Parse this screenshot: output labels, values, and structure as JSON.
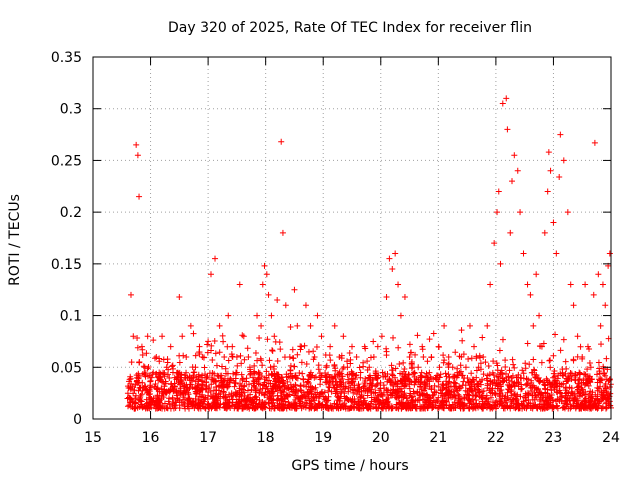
{
  "chart_data": {
    "type": "scatter",
    "title": "Day 320 of 2025, Rate Of TEC Index for receiver flin",
    "xlabel": "GPS time / hours",
    "ylabel": "ROTI / TECUs",
    "xlim": [
      15,
      24
    ],
    "ylim": [
      0,
      0.35
    ],
    "x_ticks": [
      15,
      16,
      17,
      18,
      19,
      20,
      21,
      22,
      23,
      24
    ],
    "x_tick_labels": [
      "15",
      "16",
      "17",
      "18",
      "19",
      "20",
      "21",
      "22",
      "23",
      "24"
    ],
    "y_ticks": [
      0,
      0.05,
      0.1,
      0.15,
      0.2,
      0.25,
      0.3,
      0.35
    ],
    "y_tick_labels": [
      "0",
      "0.05",
      "0.1",
      "0.15",
      "0.2",
      "0.25",
      "0.3",
      "0.35"
    ],
    "grid": true,
    "marker": "+",
    "color": "#ff0000",
    "series": [
      {
        "name": "ROTI",
        "x": [
          15.62,
          15.66,
          15.7,
          15.75,
          15.78,
          15.8,
          15.85,
          15.9,
          15.95,
          16.02,
          16.1,
          16.15,
          16.2,
          16.28,
          16.35,
          16.42,
          16.5,
          16.55,
          16.62,
          16.7,
          16.78,
          16.85,
          16.9,
          16.97,
          17.0,
          17.05,
          17.12,
          17.2,
          17.28,
          17.35,
          17.42,
          17.5,
          17.55,
          17.62,
          17.7,
          17.78,
          17.85,
          17.92,
          17.95,
          17.98,
          18.02,
          18.05,
          18.1,
          18.15,
          18.2,
          18.27,
          18.3,
          18.35,
          18.42,
          18.5,
          18.55,
          18.62,
          18.7,
          18.78,
          18.85,
          18.9,
          18.97,
          19.05,
          19.12,
          19.2,
          19.28,
          19.35,
          19.42,
          19.5,
          19.58,
          19.65,
          19.72,
          19.8,
          19.88,
          19.95,
          20.02,
          20.1,
          20.15,
          20.2,
          20.25,
          20.3,
          20.35,
          20.42,
          20.5,
          20.58,
          20.65,
          20.72,
          20.8,
          20.88,
          20.95,
          21.02,
          21.1,
          21.18,
          21.25,
          21.32,
          21.4,
          21.48,
          21.55,
          21.62,
          21.7,
          21.78,
          21.85,
          21.9,
          21.97,
          22.02,
          22.05,
          22.08,
          22.12,
          22.18,
          22.2,
          22.25,
          22.28,
          22.32,
          22.38,
          22.42,
          22.48,
          22.55,
          22.6,
          22.65,
          22.7,
          22.75,
          22.8,
          22.85,
          22.9,
          22.92,
          22.95,
          23.0,
          23.05,
          23.1,
          23.12,
          23.18,
          23.25,
          23.3,
          23.35,
          23.42,
          23.5,
          23.55,
          23.6,
          23.65,
          23.7,
          23.72,
          23.78,
          23.82,
          23.86,
          23.9,
          23.95,
          23.98,
          15.64,
          15.72,
          15.88,
          16.05,
          16.25,
          16.45,
          16.6,
          16.8,
          17.08,
          17.3,
          17.58,
          17.8,
          18.08,
          18.4,
          18.6,
          18.8,
          19.1,
          19.4,
          19.7,
          20.05,
          20.45,
          20.7,
          21.05,
          21.35,
          21.6,
          21.85,
          22.15,
          22.45,
          22.7,
          22.98,
          23.25,
          23.52,
          23.78,
          23.96
        ],
        "y": [
          0.03,
          0.12,
          0.08,
          0.265,
          0.255,
          0.215,
          0.07,
          0.05,
          0.08,
          0.04,
          0.06,
          0.045,
          0.08,
          0.05,
          0.07,
          0.04,
          0.118,
          0.08,
          0.06,
          0.09,
          0.05,
          0.07,
          0.06,
          0.04,
          0.075,
          0.14,
          0.155,
          0.09,
          0.06,
          0.1,
          0.07,
          0.045,
          0.13,
          0.08,
          0.06,
          0.04,
          0.1,
          0.09,
          0.13,
          0.148,
          0.14,
          0.12,
          0.1,
          0.08,
          0.115,
          0.268,
          0.18,
          0.11,
          0.06,
          0.125,
          0.09,
          0.07,
          0.11,
          0.09,
          0.06,
          0.1,
          0.08,
          0.05,
          0.07,
          0.09,
          0.06,
          0.08,
          0.05,
          0.07,
          0.06,
          0.045,
          0.07,
          0.05,
          0.06,
          0.04,
          0.08,
          0.118,
          0.155,
          0.145,
          0.16,
          0.13,
          0.1,
          0.118,
          0.06,
          0.045,
          0.05,
          0.07,
          0.04,
          0.06,
          0.04,
          0.05,
          0.09,
          0.06,
          0.05,
          0.04,
          0.06,
          0.05,
          0.09,
          0.07,
          0.05,
          0.06,
          0.09,
          0.13,
          0.17,
          0.2,
          0.22,
          0.15,
          0.305,
          0.31,
          0.28,
          0.18,
          0.23,
          0.255,
          0.24,
          0.2,
          0.16,
          0.13,
          0.12,
          0.09,
          0.14,
          0.1,
          0.07,
          0.18,
          0.22,
          0.258,
          0.24,
          0.19,
          0.16,
          0.234,
          0.275,
          0.25,
          0.2,
          0.13,
          0.11,
          0.08,
          0.06,
          0.13,
          0.07,
          0.05,
          0.12,
          0.267,
          0.14,
          0.09,
          0.13,
          0.11,
          0.148,
          0.16,
          0.02,
          0.01,
          0.03,
          0.02,
          0.015,
          0.025,
          0.01,
          0.03,
          0.02,
          0.015,
          0.025,
          0.01,
          0.02,
          0.03,
          0.015,
          0.025,
          0.01,
          0.02,
          0.03,
          0.015,
          0.02,
          0.01,
          0.025,
          0.02,
          0.01,
          0.03,
          0.02,
          0.015,
          0.03,
          0.01,
          0.02,
          0.025,
          0.015,
          0.02
        ],
        "dense_band": {
          "from_hour": 15.6,
          "to_hour": 24.0,
          "roti_min": 0.01,
          "roti_max": 0.045
        }
      }
    ]
  }
}
